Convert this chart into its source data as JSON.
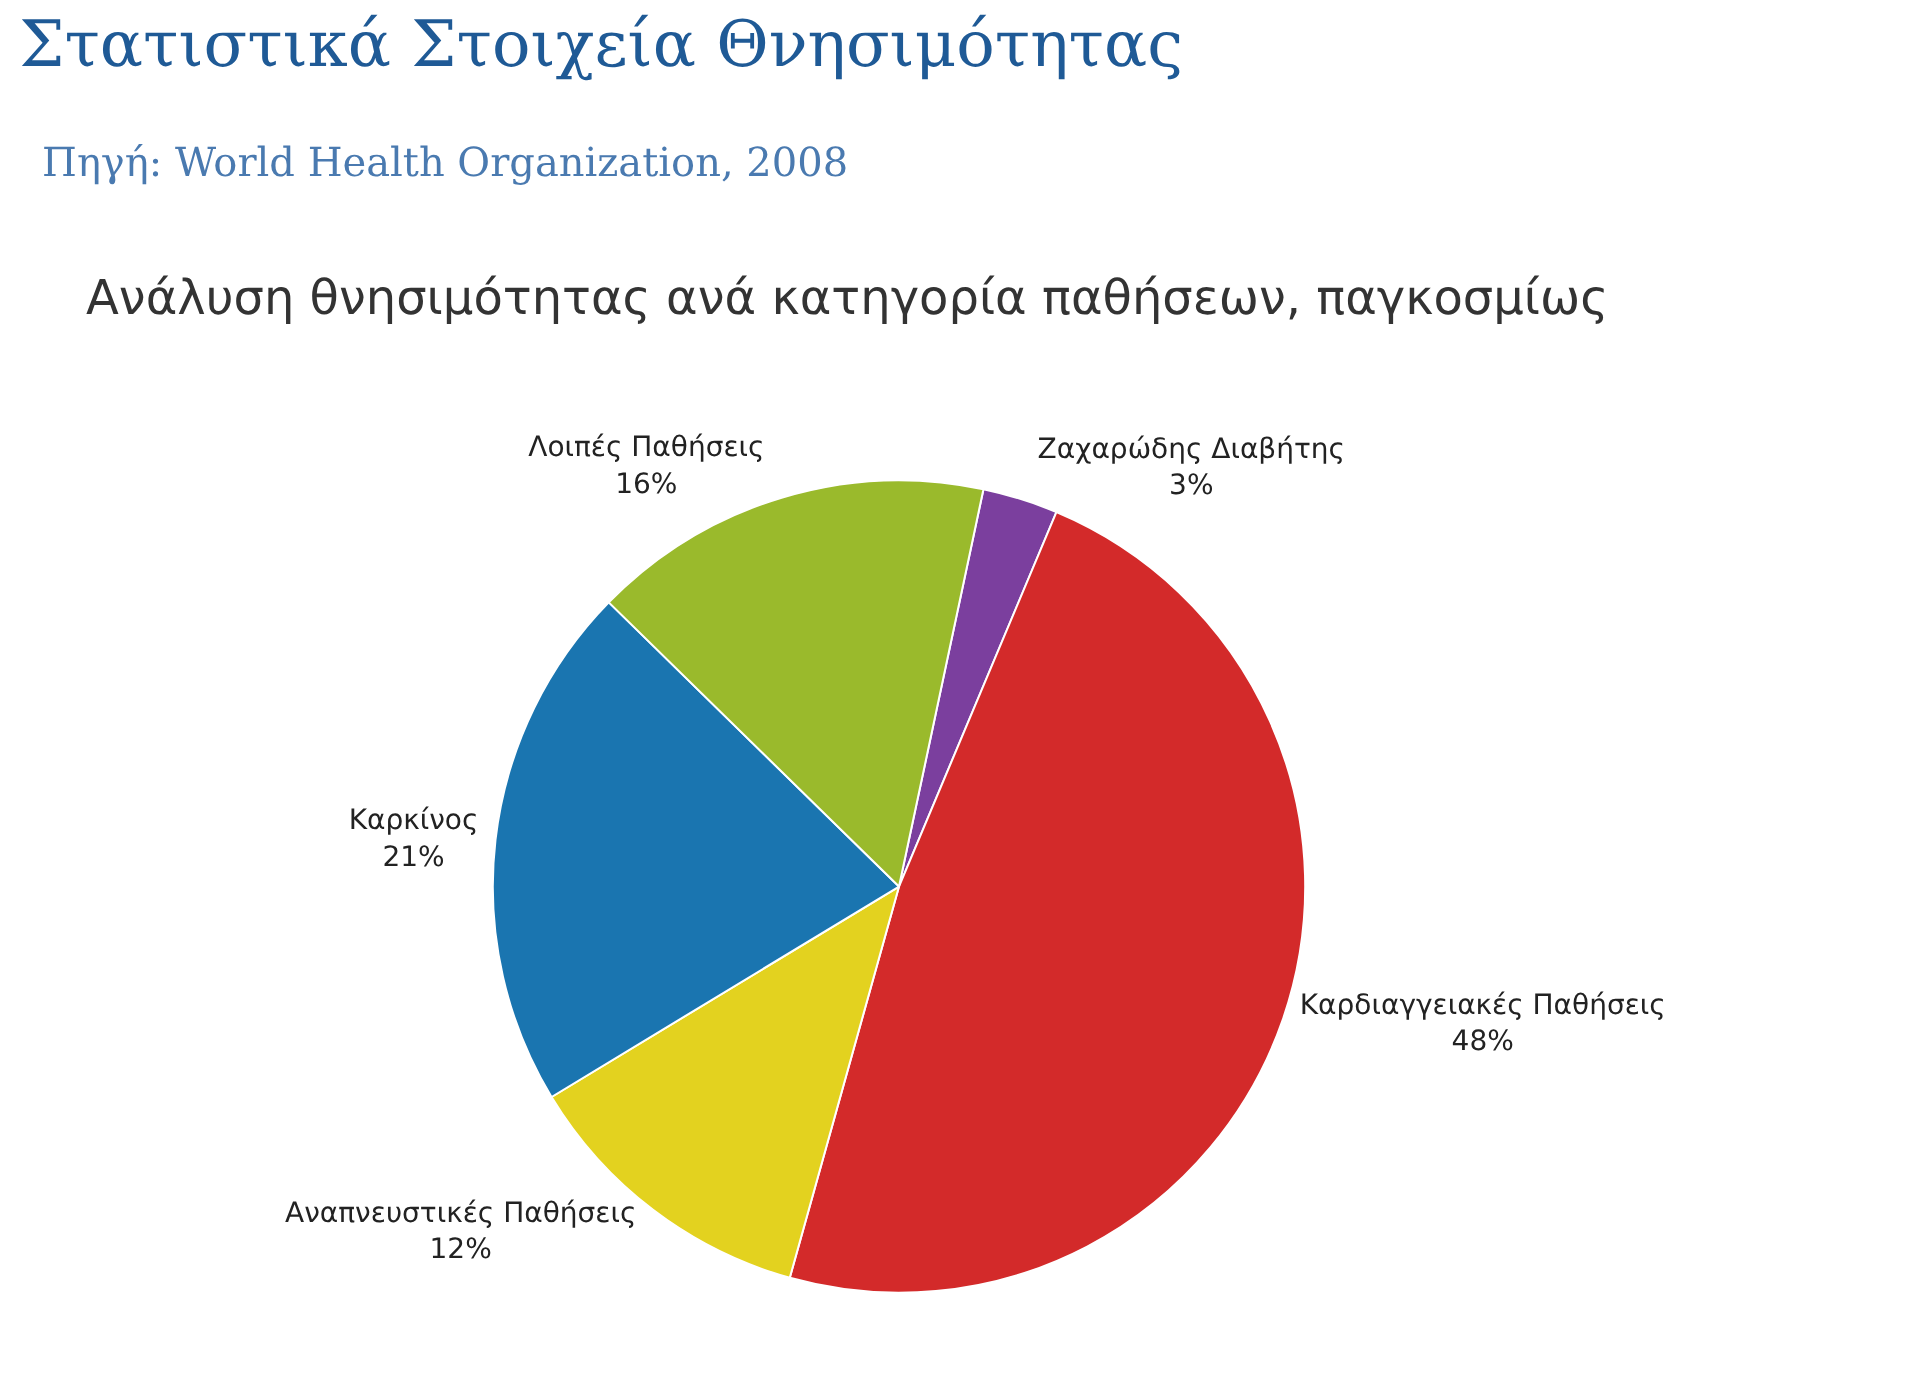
{
  "chart_data": {
    "type": "pie",
    "title": "Στατιστικά Στοιχεία Θνησιμότητας",
    "subtitle": "Πηγή: World Health Organization, 2008",
    "annotations": [
      "Ανάλυση θνησιμότητας ανά κατηγορία παθήσεων, παγκοσμίως"
    ],
    "categories": [
      "Ζαχαρώδης Διαβήτης",
      "Καρδιαγγειακές Παθήσεις",
      "Αναπνευστικές Παθήσεις",
      "Καρκίνος",
      "Λοιπές Παθήσεις"
    ],
    "values": [
      3,
      48,
      12,
      21,
      16
    ],
    "value_labels": [
      "3%",
      "48%",
      "12%",
      "21%",
      "16%"
    ],
    "colors": [
      "#7b3f9e",
      "#d32a2a",
      "#e3d21f",
      "#1a75b0",
      "#9aba2c"
    ],
    "legend": false
  }
}
